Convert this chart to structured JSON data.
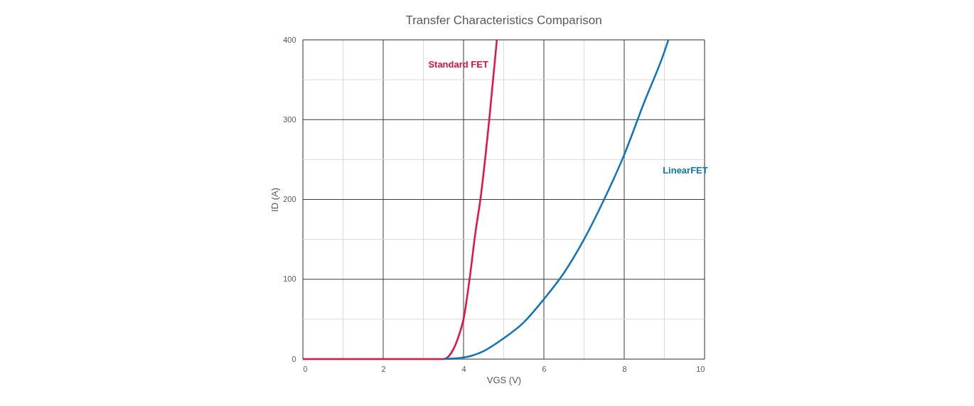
{
  "chart_data": {
    "type": "line",
    "title": "Transfer Characteristics Comparison",
    "xlabel": "VGS (V)",
    "ylabel": "ID (A)",
    "xlim": [
      0,
      10
    ],
    "ylim": [
      0,
      400
    ],
    "xticks": [
      0,
      {
        "value": 1,
        "label": null
      },
      2,
      {
        "value": 3,
        "label": null
      },
      4,
      {
        "value": 5,
        "label": null
      },
      6,
      {
        "value": 7,
        "label": null
      },
      8,
      {
        "value": 9,
        "label": null
      },
      10
    ],
    "yticks": [
      0,
      {
        "value": 50,
        "label": null
      },
      100,
      {
        "value": 150,
        "label": null
      },
      200,
      {
        "value": 250,
        "label": null
      },
      300,
      {
        "value": 350,
        "label": null
      },
      400
    ],
    "grid": true,
    "marker": "none",
    "line_style": "solid",
    "series": [
      {
        "name": "Standard FET",
        "color": "#e8103c",
        "x": [
          0,
          3.5,
          3.6,
          3.7,
          3.8,
          3.9,
          4.0,
          4.15,
          4.3,
          4.42,
          4.64,
          4.83
        ],
        "values": [
          0,
          0,
          2,
          8,
          18,
          32,
          50,
          100,
          160,
          200,
          300,
          400
        ]
      },
      {
        "name": "LinearFET",
        "color": "#0b74c4",
        "x": [
          3.5,
          4.0,
          4.5,
          5.0,
          5.5,
          6.0,
          6.5,
          7.0,
          7.5,
          8.0,
          8.5,
          9.0,
          9.1
        ],
        "values": [
          0,
          2,
          10,
          26,
          46,
          75,
          108,
          150,
          200,
          256,
          322,
          385,
          400
        ]
      }
    ]
  }
}
